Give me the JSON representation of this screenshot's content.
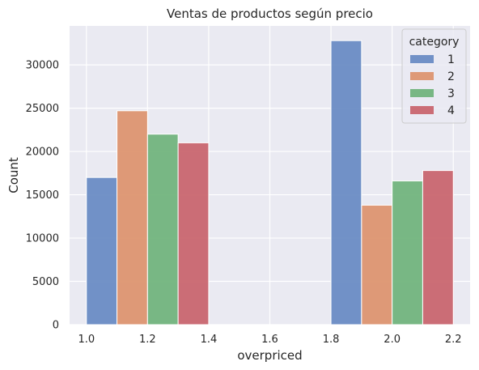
{
  "chart_data": {
    "type": "bar",
    "title": "Ventas de productos según precio",
    "xlabel": "overpriced",
    "ylabel": "Count",
    "xlim": [
      0.945,
      2.255
    ],
    "ylim": [
      0,
      34500
    ],
    "x_ticks": [
      "1.0",
      "1.2",
      "1.4",
      "1.6",
      "1.8",
      "2.0",
      "2.2"
    ],
    "y_ticks": [
      "0",
      "5000",
      "10000",
      "15000",
      "20000",
      "25000",
      "30000"
    ],
    "grid": true,
    "legend": {
      "title": "category",
      "placement": "top-right"
    },
    "series": [
      {
        "name": "1",
        "color": "#6a8cc4",
        "bars": [
          {
            "x0": 1.0,
            "x1": 1.1,
            "value": 17000
          },
          {
            "x0": 1.8,
            "x1": 1.9,
            "value": 32800
          }
        ]
      },
      {
        "name": "2",
        "color": "#dd9570",
        "bars": [
          {
            "x0": 1.1,
            "x1": 1.2,
            "value": 24700
          },
          {
            "x0": 1.9,
            "x1": 2.0,
            "value": 13800
          }
        ]
      },
      {
        "name": "3",
        "color": "#72b47d",
        "bars": [
          {
            "x0": 1.2,
            "x1": 1.3,
            "value": 22000
          },
          {
            "x0": 2.0,
            "x1": 2.1,
            "value": 16600
          }
        ]
      },
      {
        "name": "4",
        "color": "#c9666f",
        "bars": [
          {
            "x0": 1.3,
            "x1": 1.4,
            "value": 21000
          },
          {
            "x0": 2.1,
            "x1": 2.2,
            "value": 17800
          }
        ]
      }
    ]
  }
}
